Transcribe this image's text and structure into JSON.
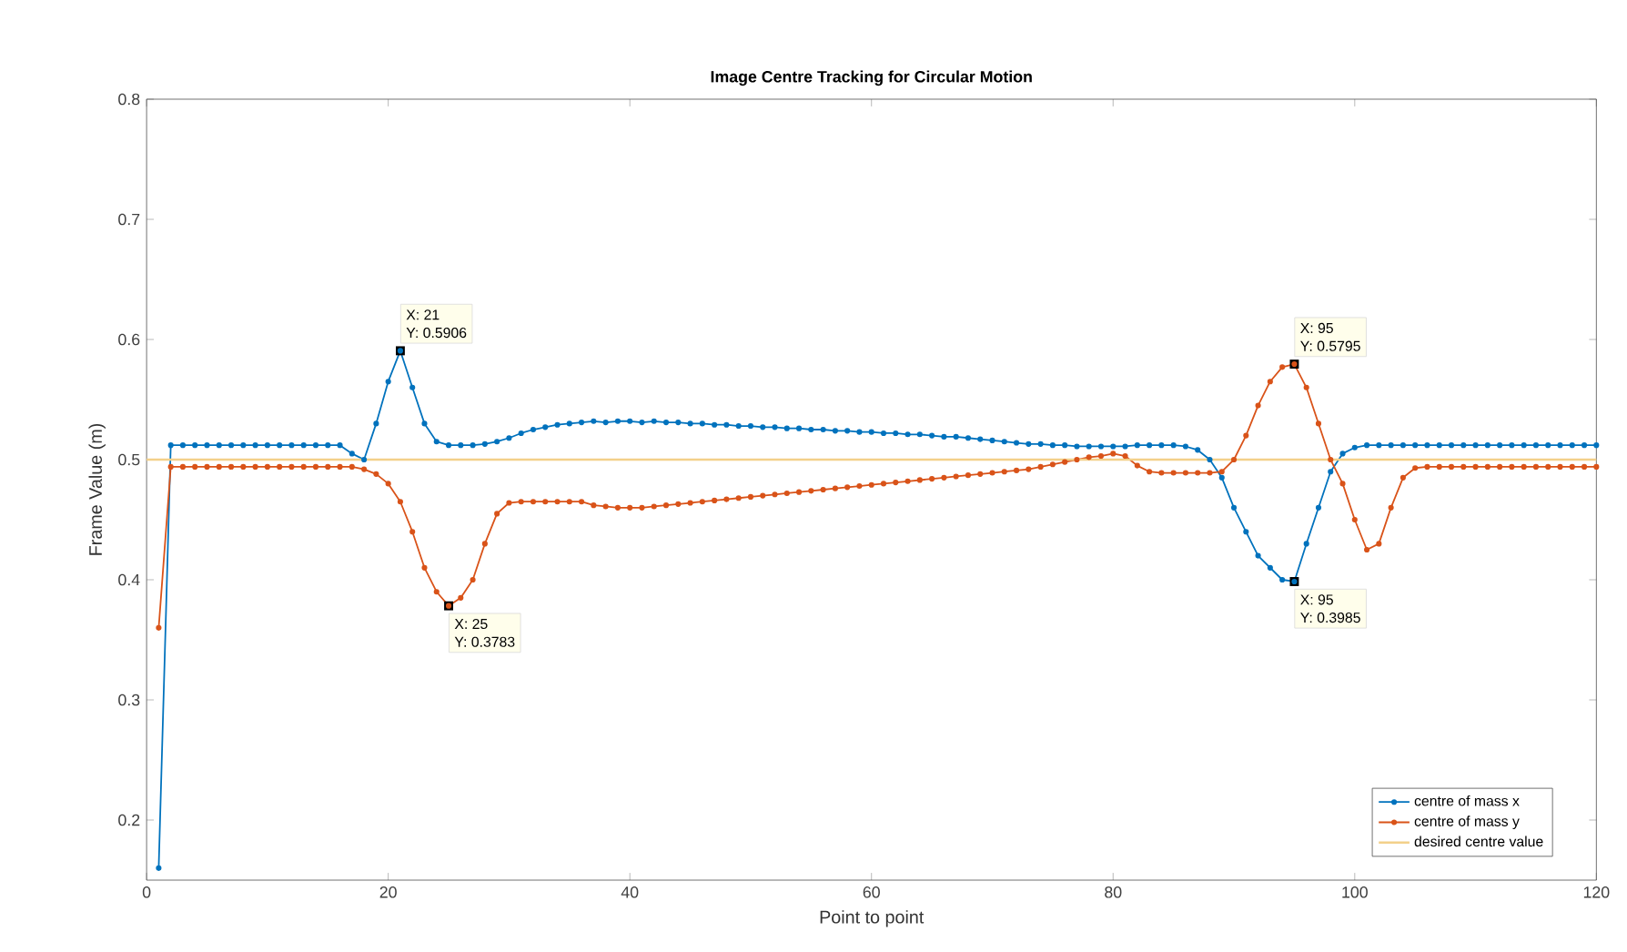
{
  "chart_data": {
    "type": "line",
    "title": "Image Centre Tracking for Circular Motion",
    "xlabel": "Point to point",
    "ylabel": "Frame Value  (m)",
    "xlim": [
      0,
      120
    ],
    "xticks": [
      0,
      20,
      40,
      60,
      80,
      100,
      120
    ],
    "ylim": [
      0.15,
      0.8
    ],
    "yticks": [
      0.2,
      0.3,
      0.4,
      0.5,
      0.6,
      0.7,
      0.8
    ],
    "marker": "circle",
    "legend": "bottom right",
    "grid": false,
    "series": [
      {
        "name": "centre of mass x",
        "color": "#0072bd",
        "x": [
          1,
          2,
          3,
          4,
          5,
          6,
          7,
          8,
          9,
          10,
          11,
          12,
          13,
          14,
          15,
          16,
          17,
          18,
          19,
          20,
          21,
          22,
          23,
          24,
          25,
          26,
          27,
          28,
          29,
          30,
          31,
          32,
          33,
          34,
          35,
          36,
          37,
          38,
          39,
          40,
          41,
          42,
          43,
          44,
          45,
          46,
          47,
          48,
          49,
          50,
          51,
          52,
          53,
          54,
          55,
          56,
          57,
          58,
          59,
          60,
          61,
          62,
          63,
          64,
          65,
          66,
          67,
          68,
          69,
          70,
          71,
          72,
          73,
          74,
          75,
          76,
          77,
          78,
          79,
          80,
          81,
          82,
          83,
          84,
          85,
          86,
          87,
          88,
          89,
          90,
          91,
          92,
          93,
          94,
          95,
          96,
          97,
          98,
          99,
          100,
          101,
          102,
          103,
          104,
          105,
          106,
          107,
          108,
          109,
          110,
          111,
          112,
          113,
          114,
          115,
          116,
          117,
          118,
          119,
          120
        ],
        "values": [
          0.16,
          0.512,
          0.512,
          0.512,
          0.512,
          0.512,
          0.512,
          0.512,
          0.512,
          0.512,
          0.512,
          0.512,
          0.512,
          0.512,
          0.512,
          0.512,
          0.505,
          0.5,
          0.53,
          0.565,
          0.5906,
          0.56,
          0.53,
          0.515,
          0.512,
          0.512,
          0.512,
          0.513,
          0.515,
          0.518,
          0.522,
          0.525,
          0.527,
          0.529,
          0.53,
          0.531,
          0.532,
          0.531,
          0.532,
          0.532,
          0.531,
          0.532,
          0.531,
          0.531,
          0.53,
          0.53,
          0.529,
          0.529,
          0.528,
          0.528,
          0.527,
          0.527,
          0.526,
          0.526,
          0.525,
          0.525,
          0.524,
          0.524,
          0.523,
          0.523,
          0.522,
          0.522,
          0.521,
          0.521,
          0.52,
          0.519,
          0.519,
          0.518,
          0.517,
          0.516,
          0.515,
          0.514,
          0.513,
          0.513,
          0.512,
          0.512,
          0.511,
          0.511,
          0.511,
          0.511,
          0.511,
          0.512,
          0.512,
          0.512,
          0.512,
          0.511,
          0.508,
          0.5,
          0.485,
          0.46,
          0.44,
          0.42,
          0.41,
          0.4,
          0.3985,
          0.43,
          0.46,
          0.49,
          0.505,
          0.51,
          0.512,
          0.512,
          0.512,
          0.512,
          0.512,
          0.512,
          0.512,
          0.512,
          0.512,
          0.512,
          0.512,
          0.512,
          0.512,
          0.512,
          0.512,
          0.512,
          0.512,
          0.512,
          0.512,
          0.512
        ]
      },
      {
        "name": "centre of mass y",
        "color": "#d95319",
        "x": [
          1,
          2,
          3,
          4,
          5,
          6,
          7,
          8,
          9,
          10,
          11,
          12,
          13,
          14,
          15,
          16,
          17,
          18,
          19,
          20,
          21,
          22,
          23,
          24,
          25,
          26,
          27,
          28,
          29,
          30,
          31,
          32,
          33,
          34,
          35,
          36,
          37,
          38,
          39,
          40,
          41,
          42,
          43,
          44,
          45,
          46,
          47,
          48,
          49,
          50,
          51,
          52,
          53,
          54,
          55,
          56,
          57,
          58,
          59,
          60,
          61,
          62,
          63,
          64,
          65,
          66,
          67,
          68,
          69,
          70,
          71,
          72,
          73,
          74,
          75,
          76,
          77,
          78,
          79,
          80,
          81,
          82,
          83,
          84,
          85,
          86,
          87,
          88,
          89,
          90,
          91,
          92,
          93,
          94,
          95,
          96,
          97,
          98,
          99,
          100,
          101,
          102,
          103,
          104,
          105,
          106,
          107,
          108,
          109,
          110,
          111,
          112,
          113,
          114,
          115,
          116,
          117,
          118,
          119,
          120
        ],
        "values": [
          0.36,
          0.494,
          0.494,
          0.494,
          0.494,
          0.494,
          0.494,
          0.494,
          0.494,
          0.494,
          0.494,
          0.494,
          0.494,
          0.494,
          0.494,
          0.494,
          0.494,
          0.492,
          0.488,
          0.48,
          0.465,
          0.44,
          0.41,
          0.39,
          0.3783,
          0.385,
          0.4,
          0.43,
          0.455,
          0.464,
          0.465,
          0.465,
          0.465,
          0.465,
          0.465,
          0.465,
          0.462,
          0.461,
          0.46,
          0.46,
          0.46,
          0.461,
          0.462,
          0.463,
          0.464,
          0.465,
          0.466,
          0.467,
          0.468,
          0.469,
          0.47,
          0.471,
          0.472,
          0.473,
          0.474,
          0.475,
          0.476,
          0.477,
          0.478,
          0.479,
          0.48,
          0.481,
          0.482,
          0.483,
          0.484,
          0.485,
          0.486,
          0.487,
          0.488,
          0.489,
          0.49,
          0.491,
          0.492,
          0.494,
          0.496,
          0.498,
          0.5,
          0.502,
          0.503,
          0.505,
          0.503,
          0.495,
          0.49,
          0.489,
          0.489,
          0.489,
          0.489,
          0.489,
          0.49,
          0.5,
          0.52,
          0.545,
          0.565,
          0.577,
          0.5795,
          0.56,
          0.53,
          0.5,
          0.48,
          0.45,
          0.425,
          0.43,
          0.46,
          0.485,
          0.493,
          0.494,
          0.494,
          0.494,
          0.494,
          0.494,
          0.494,
          0.494,
          0.494,
          0.494,
          0.494,
          0.494,
          0.494,
          0.494,
          0.494,
          0.494
        ]
      }
    ],
    "ref_lines": [
      {
        "axis": "y",
        "value": 0.5,
        "label": "desired centre value",
        "color": "#f3d08a"
      }
    ],
    "annotations": [
      {
        "text": "X: 21",
        "x": 21,
        "y": 0.5906
      },
      {
        "text": "Y: 0.5906",
        "x": 21,
        "y": 0.5906
      },
      {
        "text": "X: 25",
        "x": 25,
        "y": 0.3783
      },
      {
        "text": "Y: 0.3783",
        "x": 25,
        "y": 0.3783
      },
      {
        "text": "X: 95",
        "x": 95,
        "y": 0.5795
      },
      {
        "text": "Y: 0.5795",
        "x": 95,
        "y": 0.5795
      },
      {
        "text": "X: 95",
        "x": 95,
        "y": 0.3985
      },
      {
        "text": "Y: 0.3985",
        "x": 95,
        "y": 0.3985
      }
    ]
  }
}
